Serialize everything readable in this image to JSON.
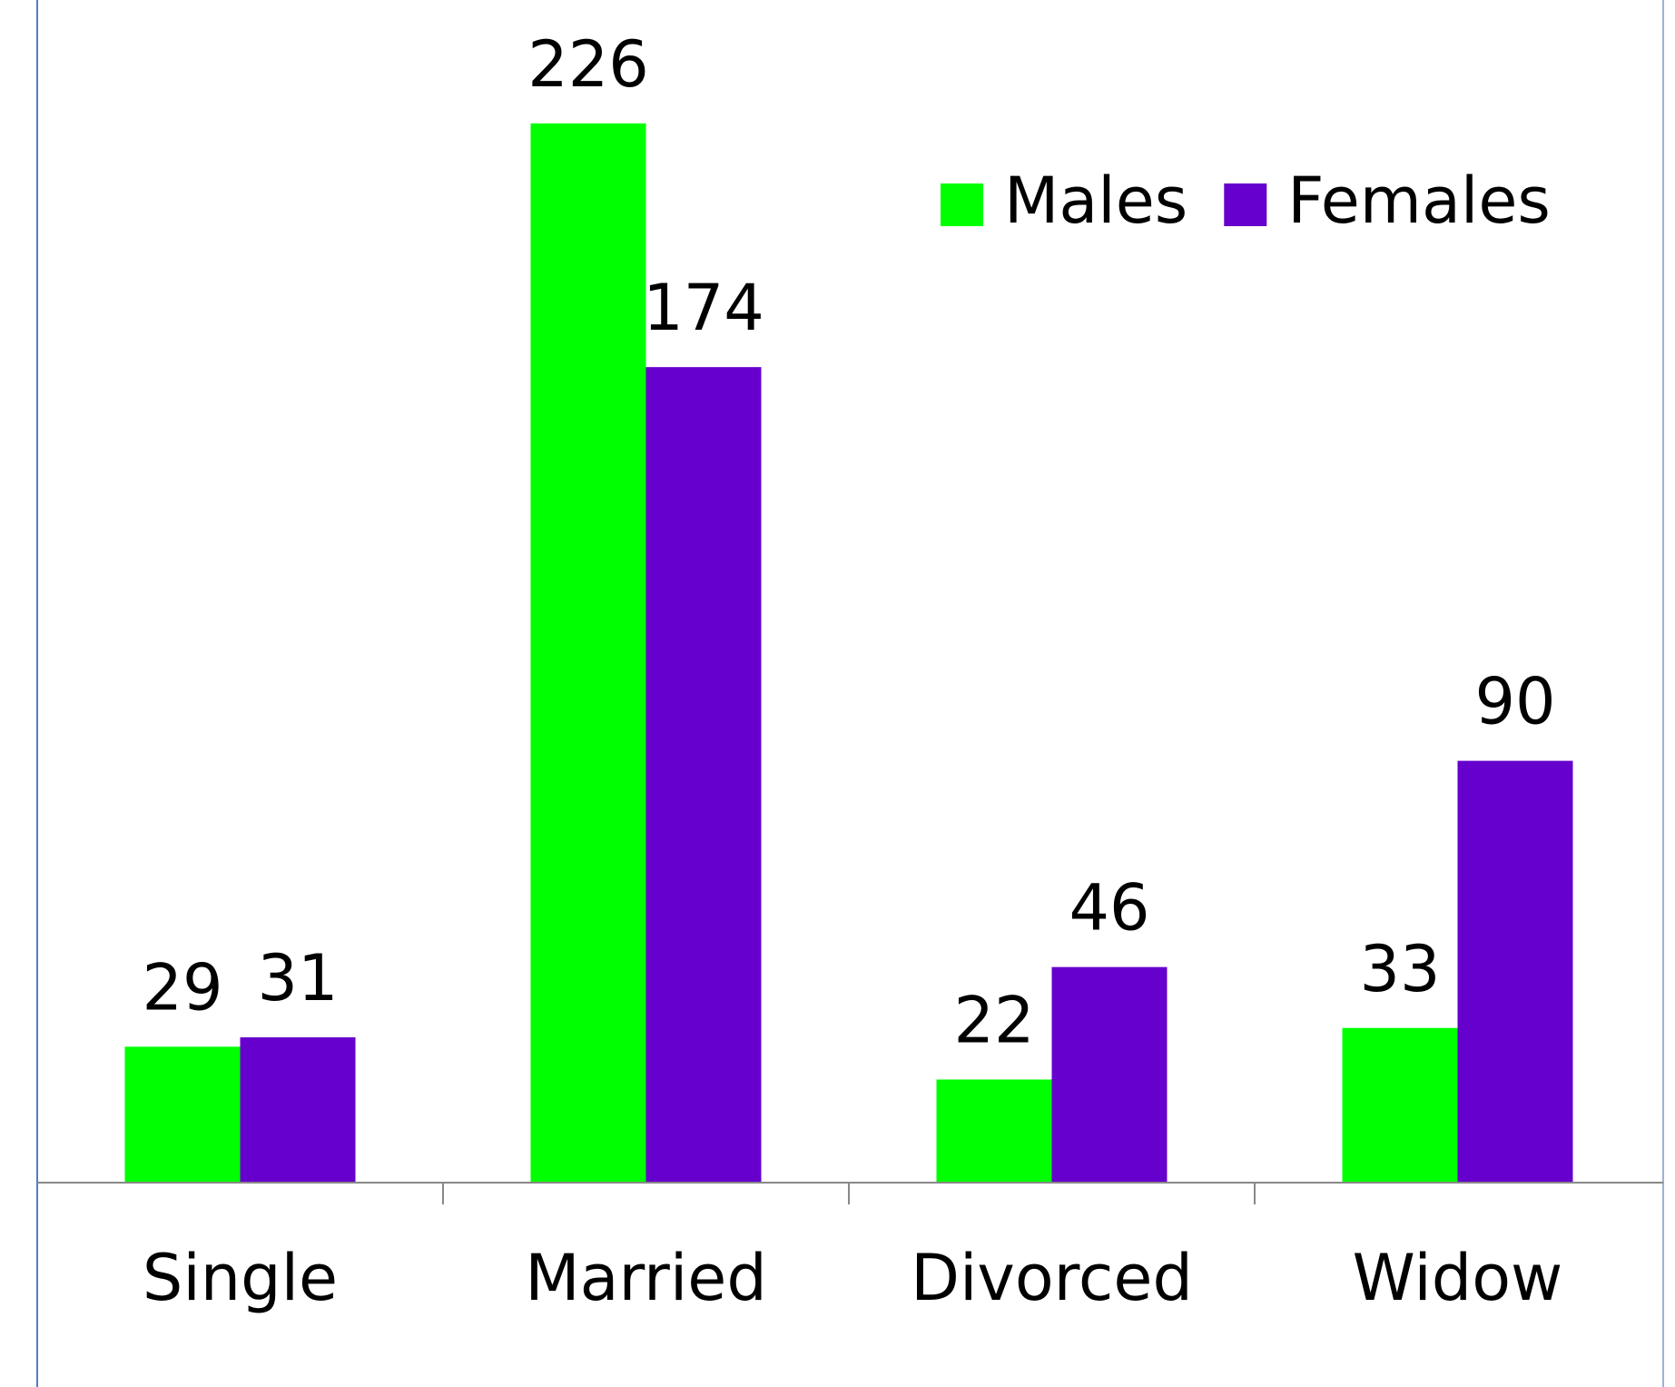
{
  "chart_data": {
    "type": "bar",
    "categories": [
      "Single",
      "Married",
      "Divorced",
      "Widow"
    ],
    "series": [
      {
        "name": "Males",
        "color": "#00ff00",
        "values": [
          29,
          226,
          22,
          33
        ]
      },
      {
        "name": "Females",
        "color": "#6600cc",
        "values": [
          31,
          174,
          46,
          90
        ]
      }
    ],
    "ylim": [
      0,
      250
    ],
    "legend": "upper right"
  }
}
